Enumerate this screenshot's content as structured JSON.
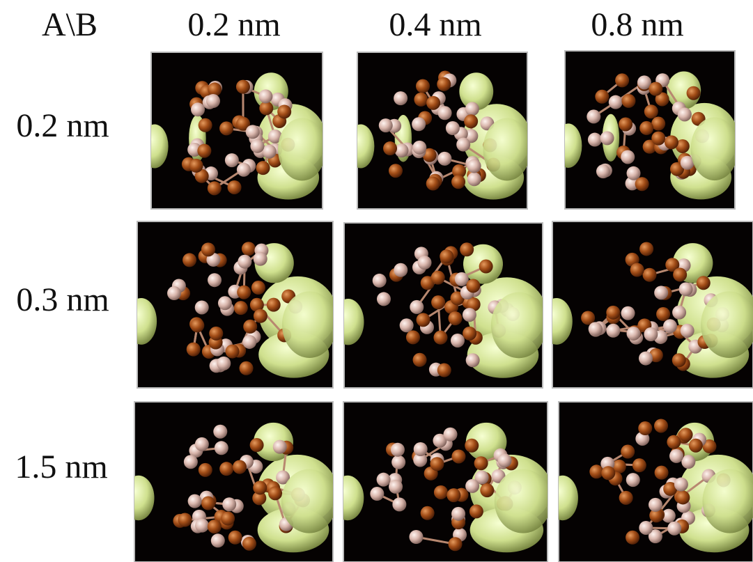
{
  "header": {
    "corner": "A\\B",
    "columns": [
      "0.2 nm",
      "0.4 nm",
      "0.8 nm"
    ]
  },
  "rows": [
    "0.2 nm",
    "0.3 nm",
    "1.5 nm"
  ]
}
